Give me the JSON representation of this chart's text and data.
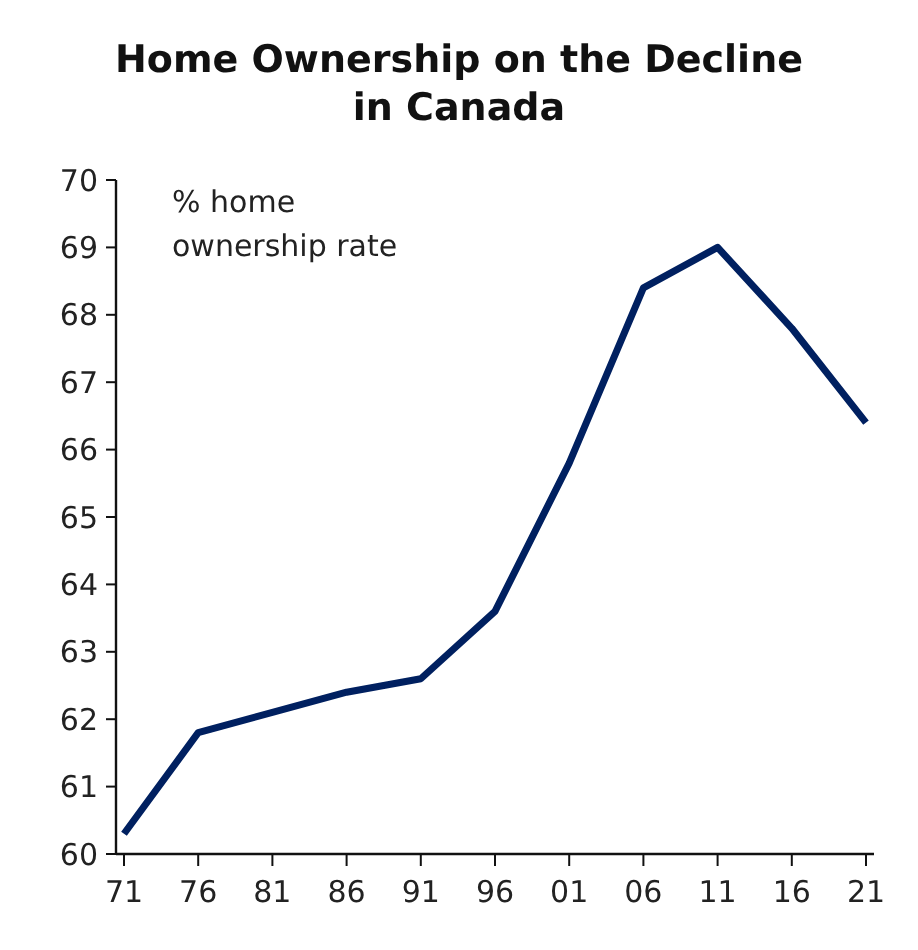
{
  "chart_data": {
    "type": "line",
    "title": "Home Ownership on the Decline\nin Canada",
    "categories": [
      "71",
      "76",
      "81",
      "86",
      "91",
      "96",
      "01",
      "06",
      "11",
      "16",
      "21"
    ],
    "series": [
      {
        "color": "#002060",
        "values": [
          60.3,
          61.8,
          62.1,
          62.4,
          62.6,
          63.6,
          65.8,
          68.4,
          69.0,
          67.8,
          66.4
        ]
      }
    ],
    "ylim": [
      60,
      70
    ],
    "yticks": [
      60,
      61,
      62,
      63,
      64,
      65,
      66,
      67,
      68,
      69,
      70
    ],
    "annotations": [
      "% home\nownership rate"
    ],
    "marker": "none",
    "line_style": "solid"
  }
}
